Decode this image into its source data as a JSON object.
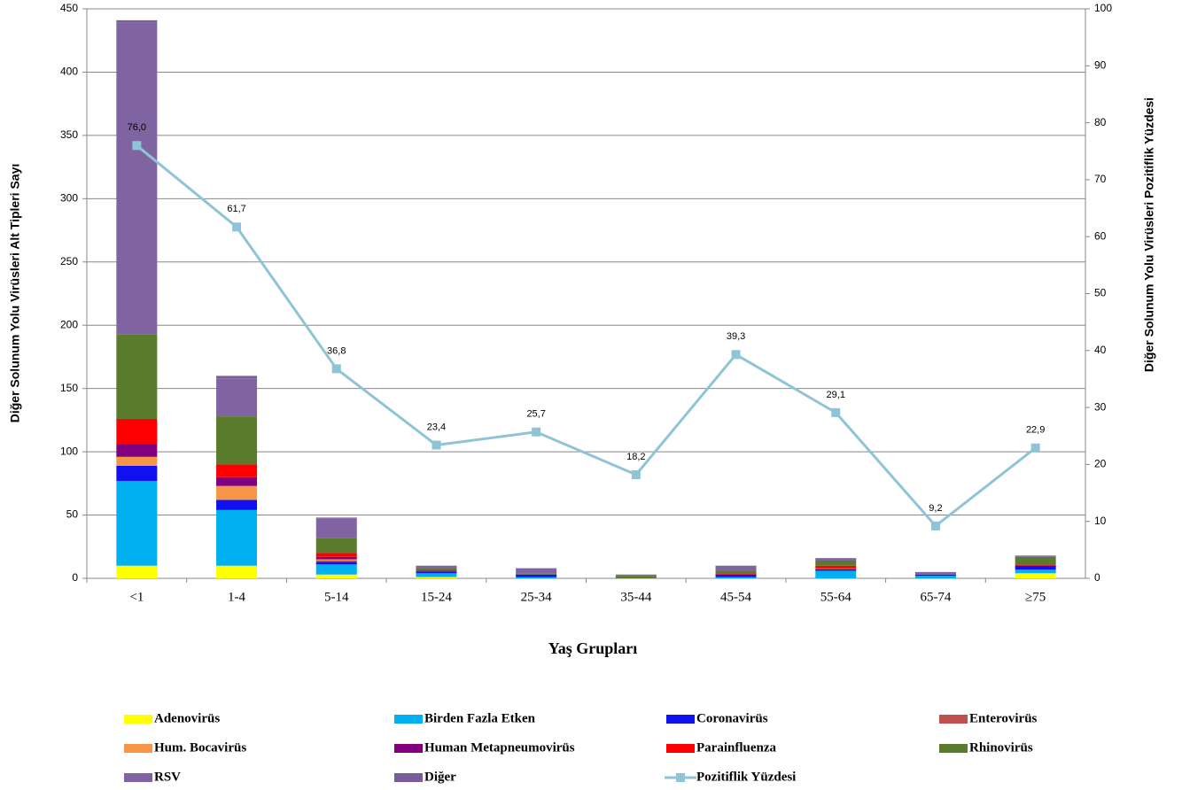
{
  "chart_data": {
    "type": "bar",
    "stacked": true,
    "xlabel": "Yaş Grupları",
    "ylabel": "Diğer Solunum Yolu Virüsleri  Alt Tipleri Sayı",
    "y2label": "Diğer Solunum Yolu Virüsleri  Pozitiflik Yüzdesi",
    "categories": [
      "<1",
      "1-4",
      "5-14",
      "15-24",
      "25-34",
      "35-44",
      "45-54",
      "55-64",
      "65-74",
      "≥75"
    ],
    "ylim": [
      0,
      450
    ],
    "yticks": [
      0,
      50,
      100,
      150,
      200,
      250,
      300,
      350,
      400,
      450
    ],
    "y2lim": [
      0,
      100
    ],
    "y2ticks": [
      0,
      10,
      20,
      30,
      40,
      50,
      60,
      70,
      80,
      90,
      100
    ],
    "grid": true,
    "legend": "bottom",
    "series": [
      {
        "name": "Adenovirüs",
        "color": "#ffff00",
        "values": [
          10,
          10,
          3,
          1,
          0,
          0,
          0,
          0,
          0,
          4
        ]
      },
      {
        "name": "Birden Fazla Etken",
        "color": "#00b0f0",
        "values": [
          67,
          44,
          8,
          3,
          1,
          0,
          1,
          6,
          2,
          3
        ]
      },
      {
        "name": "Coronavirüs",
        "color": "#1010f0",
        "values": [
          12,
          8,
          2,
          1,
          2,
          0,
          2,
          1,
          1,
          3
        ]
      },
      {
        "name": "Enterovirüs",
        "color": "#c0504d",
        "values": [
          0,
          0,
          1,
          0,
          0,
          0,
          0,
          1,
          0,
          0
        ]
      },
      {
        "name": "Hum. Bocavirüs",
        "color": "#f79646",
        "values": [
          7,
          11,
          1,
          0,
          0,
          0,
          0,
          0,
          0,
          0
        ]
      },
      {
        "name": "Human Metapneumovirüs",
        "color": "#800080",
        "values": [
          10,
          7,
          2,
          1,
          0,
          0,
          0,
          0,
          0,
          0
        ]
      },
      {
        "name": "Parainfluenza",
        "color": "#ff0000",
        "values": [
          20,
          10,
          3,
          0,
          0,
          0,
          1,
          2,
          0,
          1
        ]
      },
      {
        "name": "Rhinovirüs",
        "color": "#5a7a2c",
        "values": [
          67,
          38,
          12,
          2,
          1,
          2,
          2,
          4,
          0,
          6
        ]
      },
      {
        "name": "RSV",
        "color": "#8064a2",
        "values": [
          246,
          30,
          15,
          2,
          4,
          1,
          4,
          2,
          2,
          1
        ]
      },
      {
        "name": "Diğer",
        "color": "#7a5c99",
        "values": [
          2,
          2,
          1,
          0,
          0,
          0,
          0,
          0,
          0,
          0
        ]
      },
      {
        "name": "Pozitiflik Yüzdesi",
        "color": "#8fc4d7",
        "type": "line",
        "axis": "y2",
        "values": [
          76.0,
          61.7,
          36.8,
          23.4,
          25.7,
          18.2,
          39.3,
          29.1,
          9.2,
          22.9
        ],
        "value_labels": [
          "76,0",
          "61,7",
          "36,8",
          "23,4",
          "25,7",
          "18,2",
          "39,3",
          "29,1",
          "9,2",
          "22,9"
        ]
      }
    ]
  }
}
